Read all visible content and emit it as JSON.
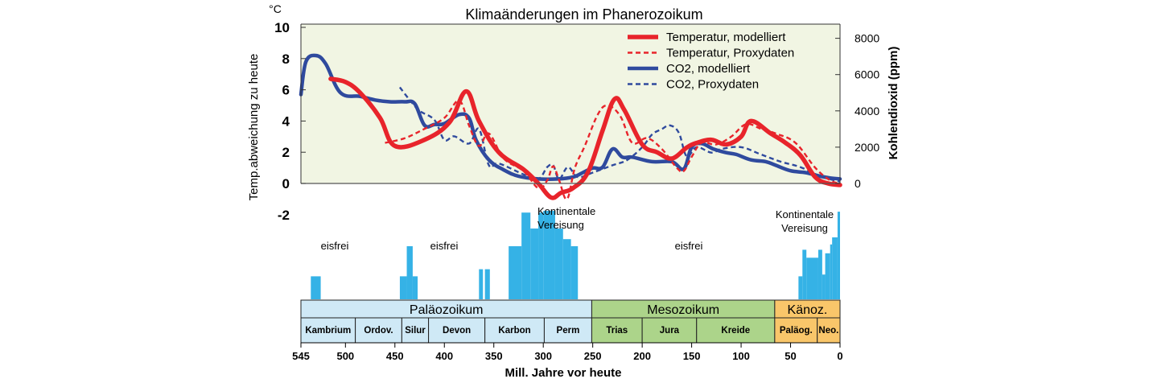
{
  "chart_data": {
    "type": "line",
    "title": "Klimaänderungen im Phanerozoikum",
    "xlabel": "Mill. Jahre vor heute",
    "ylabel_left": "Temp.abweichung zu heute",
    "ylabel_left_unit": "°C",
    "ylabel_right": "Kohlendioxid (ppm)",
    "xlim": [
      545,
      0
    ],
    "ylim_left": [
      -2,
      10
    ],
    "ylim_right": [
      0,
      9000
    ],
    "x_ticks": [
      545,
      500,
      450,
      400,
      350,
      300,
      250,
      200,
      150,
      100,
      50,
      0
    ],
    "y_ticks_left": [
      10,
      8,
      6,
      4,
      2,
      0,
      -2
    ],
    "y_ticks_right": [
      8000,
      6000,
      4000,
      2000,
      0
    ],
    "grid": false,
    "legend_position": "top-right",
    "colors": {
      "temperature": "#e8242b",
      "co2": "#2f4a9e",
      "plot_bg": "#f1f5e3",
      "ice": "#35b2e6",
      "palaeo": "#cfe9f6",
      "meso": "#acd48a",
      "kaeno": "#f9c66a"
    },
    "legend": [
      {
        "label": "Temperatur, modelliert",
        "series": "temp_model"
      },
      {
        "label": "Temperatur, Proxydaten",
        "series": "temp_proxy"
      },
      {
        "label": "CO2, modelliert",
        "series": "co2_model"
      },
      {
        "label": "CO2, Proxydaten",
        "series": "co2_proxy"
      }
    ],
    "series": [
      {
        "name": "Temperatur, modelliert",
        "axis": "left",
        "style": "solid",
        "color": "#e8242b",
        "x": [
          515,
          500,
          485,
          465,
          450,
          420,
          395,
          378,
          365,
          345,
          320,
          305,
          292,
          282,
          270,
          255,
          240,
          228,
          218,
          200,
          185,
          170,
          155,
          145,
          130,
          115,
          100,
          90,
          70,
          55,
          40,
          25,
          12,
          0
        ],
        "y": [
          6.7,
          6.5,
          5.8,
          4.2,
          2.4,
          2.8,
          3.9,
          5.9,
          4.0,
          2.0,
          0.9,
          0.0,
          -0.9,
          -0.6,
          -0.3,
          0.7,
          3.4,
          5.4,
          4.7,
          2.5,
          2.0,
          1.6,
          2.3,
          2.6,
          2.8,
          2.5,
          3.0,
          4.0,
          3.2,
          2.6,
          1.8,
          0.4,
          0.0,
          -0.1
        ]
      },
      {
        "name": "Temperatur, Proxydaten",
        "axis": "left",
        "style": "dashed",
        "color": "#e8242b",
        "x": [
          460,
          440,
          420,
          400,
          385,
          375,
          365,
          355,
          340,
          320,
          305,
          296,
          290,
          284,
          276,
          268,
          258,
          245,
          235,
          222,
          210,
          195,
          180,
          165,
          158,
          150,
          140,
          125,
          110,
          95,
          80,
          65,
          45,
          25,
          10,
          0
        ],
        "y": [
          2.6,
          2.9,
          3.5,
          4.2,
          5.3,
          3.7,
          2.4,
          3.2,
          1.6,
          0.8,
          -0.3,
          0.2,
          1.1,
          0.2,
          -1.0,
          1.0,
          2.4,
          4.4,
          5.0,
          4.3,
          2.6,
          2.9,
          2.2,
          1.0,
          0.8,
          1.7,
          2.6,
          2.5,
          3.0,
          3.8,
          3.5,
          3.2,
          2.6,
          1.0,
          0.2,
          0.0
        ]
      },
      {
        "name": "CO2, modelliert",
        "axis": "right",
        "style": "solid",
        "color": "#2f4a9e",
        "x": [
          545,
          540,
          530,
          520,
          505,
          485,
          470,
          455,
          440,
          430,
          420,
          410,
          400,
          385,
          375,
          368,
          355,
          340,
          325,
          305,
          285,
          270,
          260,
          250,
          240,
          230,
          220,
          210,
          190,
          170,
          158,
          150,
          140,
          128,
          115,
          105,
          90,
          75,
          65,
          50,
          35,
          20,
          10,
          0
        ],
        "y": [
          4900,
          6700,
          7050,
          6600,
          5000,
          4800,
          4600,
          4500,
          4500,
          4400,
          3200,
          3250,
          3300,
          3800,
          3600,
          2400,
          1300,
          750,
          400,
          250,
          250,
          350,
          600,
          850,
          900,
          1900,
          1450,
          1450,
          1200,
          1200,
          800,
          2000,
          2200,
          1900,
          1700,
          1600,
          1300,
          1200,
          1000,
          700,
          600,
          400,
          300,
          250
        ]
      },
      {
        "name": "CO2, Proxydaten",
        "axis": "right",
        "style": "dashed",
        "color": "#2f4a9e",
        "x": [
          445,
          435,
          425,
          410,
          400,
          390,
          375,
          365,
          355,
          345,
          320,
          305,
          296,
          290,
          284,
          275,
          265,
          250,
          230,
          215,
          200,
          190,
          180,
          172,
          163,
          155,
          145,
          130,
          120,
          100,
          80,
          60,
          40,
          20,
          0
        ],
        "y": [
          5300,
          4600,
          4000,
          3500,
          2400,
          2600,
          2200,
          3000,
          1000,
          1100,
          500,
          250,
          900,
          1000,
          250,
          900,
          350,
          600,
          1000,
          1300,
          2000,
          2700,
          3000,
          3200,
          2800,
          1500,
          2000,
          1700,
          1900,
          2000,
          1600,
          1200,
          900,
          400,
          100
        ]
      }
    ],
    "annotations": [
      {
        "text": "Kontinentale",
        "x": 282
      },
      {
        "text": "Vereisung",
        "x": 282
      },
      {
        "text": "Kontinentale",
        "x": 25
      },
      {
        "text": "Vereisung",
        "x": 25
      },
      {
        "text": "eisfrei",
        "x": 510
      },
      {
        "text": "eisfrei",
        "x": 430
      },
      {
        "text": "eisfrei",
        "x": 155
      }
    ],
    "ice_extent": [
      {
        "from": 535,
        "to": 525,
        "level": 0.26
      },
      {
        "from": 445,
        "to": 438,
        "level": 0.26
      },
      {
        "from": 438,
        "to": 432,
        "level": 0.6
      },
      {
        "from": 432,
        "to": 427,
        "level": 0.26
      },
      {
        "from": 365,
        "to": 361,
        "level": 0.34
      },
      {
        "from": 359,
        "to": 354,
        "level": 0.34
      },
      {
        "from": 335,
        "to": 322,
        "level": 0.6
      },
      {
        "from": 322,
        "to": 313,
        "level": 0.98
      },
      {
        "from": 313,
        "to": 305,
        "level": 0.8
      },
      {
        "from": 305,
        "to": 300,
        "level": 0.98
      },
      {
        "from": 300,
        "to": 288,
        "level": 1.0
      },
      {
        "from": 288,
        "to": 280,
        "level": 0.8
      },
      {
        "from": 280,
        "to": 272,
        "level": 0.68
      },
      {
        "from": 272,
        "to": 265,
        "level": 0.6
      },
      {
        "from": 42,
        "to": 38,
        "level": 0.26
      },
      {
        "from": 38,
        "to": 34,
        "level": 0.56
      },
      {
        "from": 34,
        "to": 22,
        "level": 0.47
      },
      {
        "from": 22,
        "to": 18,
        "level": 0.56
      },
      {
        "from": 18,
        "to": 15,
        "level": 0.28
      },
      {
        "from": 15,
        "to": 10,
        "level": 0.52
      },
      {
        "from": 10,
        "to": 8,
        "level": 0.62
      },
      {
        "from": 8,
        "to": 2.5,
        "level": 0.7
      },
      {
        "from": 2.5,
        "to": 0,
        "level": 0.99
      }
    ],
    "eras": [
      {
        "label": "Paläozoikum",
        "from": 545,
        "to": 251,
        "color": "#cfe9f6"
      },
      {
        "label": "Mesozoikum",
        "from": 251,
        "to": 66,
        "color": "#acd48a"
      },
      {
        "label": "Känoz.",
        "from": 66,
        "to": 0,
        "color": "#f9c66a"
      }
    ],
    "periods": [
      {
        "label": "Kambrium",
        "from": 545,
        "to": 490,
        "color": "#cfe9f6"
      },
      {
        "label": "Ordov.",
        "from": 490,
        "to": 443,
        "color": "#cfe9f6"
      },
      {
        "label": "Silur",
        "from": 443,
        "to": 416,
        "color": "#cfe9f6"
      },
      {
        "label": "Devon",
        "from": 416,
        "to": 359,
        "color": "#cfe9f6"
      },
      {
        "label": "Karbon",
        "from": 359,
        "to": 299,
        "color": "#cfe9f6"
      },
      {
        "label": "Perm",
        "from": 299,
        "to": 251,
        "color": "#cfe9f6"
      },
      {
        "label": "Trias",
        "from": 251,
        "to": 200,
        "color": "#acd48a"
      },
      {
        "label": "Jura",
        "from": 200,
        "to": 145,
        "color": "#acd48a"
      },
      {
        "label": "Kreide",
        "from": 145,
        "to": 66,
        "color": "#acd48a"
      },
      {
        "label": "Paläog.",
        "from": 66,
        "to": 23,
        "color": "#f9c66a"
      },
      {
        "label": "Neo.",
        "from": 23,
        "to": 0,
        "color": "#f9c66a"
      }
    ]
  }
}
